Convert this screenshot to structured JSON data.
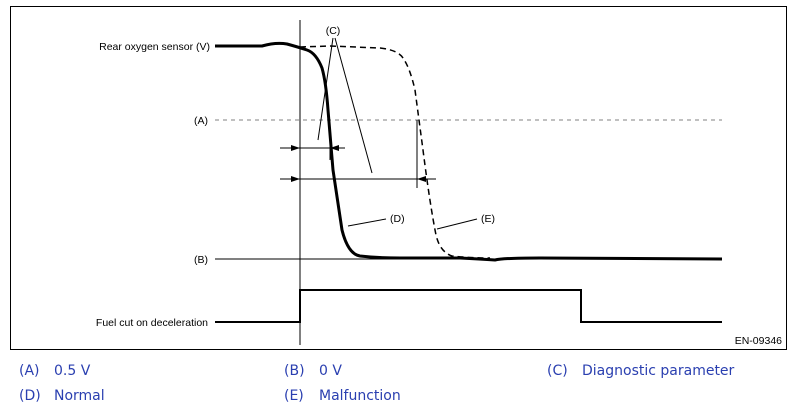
{
  "diagram": {
    "labels": {
      "rear_o2": "Rear oxygen sensor (V)",
      "a": "(A)",
      "b": "(B)",
      "fuel_cut": "Fuel cut on deceleration",
      "c": "(C)",
      "d": "(D)",
      "e": "(E)",
      "code": "EN-09346"
    }
  },
  "legend": [
    {
      "key": "(A)",
      "text": "0.5 V"
    },
    {
      "key": "(B)",
      "text": "0 V"
    },
    {
      "key": "(C)",
      "text": "Diagnostic parameter"
    },
    {
      "key": "(D)",
      "text": "Normal"
    },
    {
      "key": "(E)",
      "text": "Malfunction"
    }
  ],
  "colors": {
    "legend_text": "#2a3fb0",
    "line": "#000000",
    "dashed_ref": "#808080"
  }
}
